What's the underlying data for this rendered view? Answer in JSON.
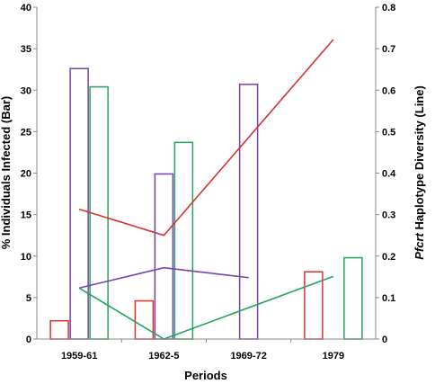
{
  "chart_data": {
    "type": "bar",
    "categories": [
      "1959-61",
      "1962-5",
      "1969-72",
      "1979"
    ],
    "xlabel": "Periods",
    "ylabel_left": "% Individuals Infected (Bar)",
    "ylabel_right_italic": "Pfcrt",
    "ylabel_right_rest": " Haplotype Diversity (Line)",
    "ylim_left": [
      0,
      40
    ],
    "ylim_right": [
      0,
      0.8
    ],
    "yticks_left": [
      "0",
      "5",
      "10",
      "15",
      "20",
      "25",
      "30",
      "35",
      "40"
    ],
    "yticks_right": [
      "0",
      "0.1",
      "0.2",
      "0.3",
      "0.4",
      "0.5",
      "0.6",
      "0.7",
      "0.8"
    ],
    "grid": false,
    "legend": "none",
    "bar_series": [
      {
        "color": "#e03030",
        "values": [
          2.2,
          4.6,
          null,
          8.1
        ]
      },
      {
        "color": "#7a3fb0",
        "values": [
          32.6,
          19.9,
          30.7,
          null
        ]
      },
      {
        "color": "#22a45a",
        "values": [
          30.4,
          23.7,
          null,
          9.8
        ]
      }
    ],
    "line_series": [
      {
        "color": "#d83030",
        "points": [
          [
            0,
            0.313
          ],
          [
            1,
            0.25
          ],
          [
            3,
            0.722
          ]
        ]
      },
      {
        "color": "#7a3fb0",
        "points": [
          [
            0,
            0.123
          ],
          [
            1,
            0.172
          ],
          [
            2,
            0.148
          ]
        ]
      },
      {
        "color": "#22a45a",
        "points": [
          [
            0,
            0.123
          ],
          [
            1,
            0.0
          ],
          [
            3,
            0.151
          ]
        ]
      }
    ]
  }
}
